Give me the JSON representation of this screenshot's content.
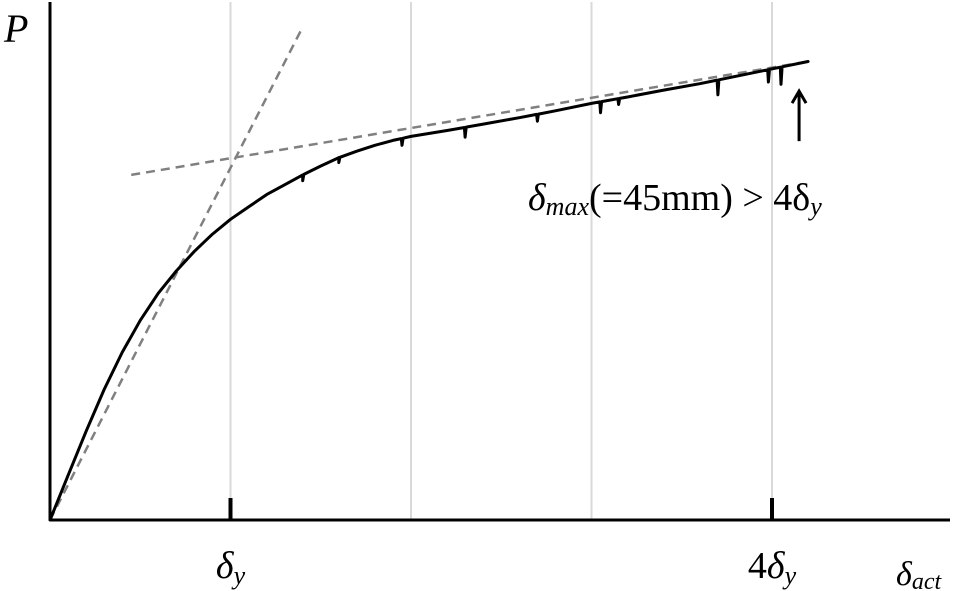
{
  "chart_data": {
    "type": "line",
    "title": "",
    "ylabel": "P",
    "xlabel": "δact",
    "xlim": [
      0,
      5
    ],
    "ylim": [
      0,
      1
    ],
    "grid": true,
    "grid_x": [
      1,
      2,
      3,
      4
    ],
    "x_ticks": [
      {
        "x": 1,
        "label": "δy"
      },
      {
        "x": 4,
        "label": "4δy"
      }
    ],
    "series": [
      {
        "x": [
          0,
          0.1,
          0.2,
          0.3,
          0.4,
          0.5,
          0.6,
          0.7,
          0.8,
          0.9,
          1.0,
          1.1,
          1.2,
          1.3,
          1.4,
          1.5,
          1.6,
          1.7,
          1.8,
          1.9,
          2.0,
          2.2,
          2.4,
          2.6,
          2.8,
          3.0,
          3.2,
          3.4,
          3.6,
          3.8,
          4.0,
          4.2
        ],
        "y": [
          0,
          0.09,
          0.18,
          0.265,
          0.34,
          0.405,
          0.46,
          0.505,
          0.545,
          0.58,
          0.61,
          0.635,
          0.66,
          0.68,
          0.7,
          0.718,
          0.735,
          0.748,
          0.76,
          0.77,
          0.778,
          0.79,
          0.803,
          0.816,
          0.83,
          0.845,
          0.858,
          0.872,
          0.885,
          0.9,
          0.915,
          0.93
        ]
      }
    ],
    "dips": [
      {
        "x": 1.4,
        "depth": 0.012
      },
      {
        "x": 1.6,
        "depth": 0.01
      },
      {
        "x": 1.95,
        "depth": 0.014
      },
      {
        "x": 2.3,
        "depth": 0.02
      },
      {
        "x": 2.7,
        "depth": 0.014
      },
      {
        "x": 3.05,
        "depth": 0.022
      },
      {
        "x": 3.15,
        "depth": 0.012
      },
      {
        "x": 3.7,
        "depth": 0.03
      },
      {
        "x": 3.98,
        "depth": 0.025
      },
      {
        "x": 4.05,
        "depth": 0.035
      }
    ],
    "reference_lines": [
      {
        "x": [
          0,
          1.4
        ],
        "y": [
          0,
          1.0
        ]
      },
      {
        "x": [
          0.45,
          4.2
        ],
        "y": [
          0.7,
          0.93
        ]
      }
    ],
    "annotation": {
      "x": 4.15,
      "y": 0.87,
      "text_symbol": "δ",
      "text_subscript": "max",
      "text_rest": "(=45mm) > 4δ",
      "text_end_subscript": "y"
    }
  }
}
